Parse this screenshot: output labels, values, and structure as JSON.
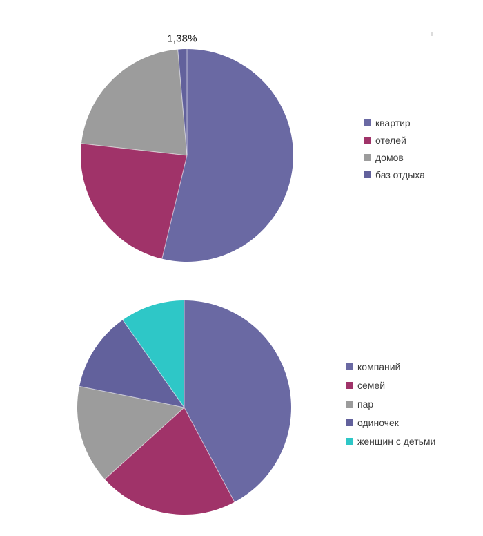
{
  "colors": {
    "background": "#ffffff",
    "label_text": "#1a1a1a",
    "legend_text": "#3d3d3d",
    "slice_separator": "rgba(255,255,255,0.55)"
  },
  "chart_data": [
    {
      "type": "pie",
      "name": "accommodation-share-pie",
      "title": "",
      "legend_position": "right",
      "start_angle_deg": 0,
      "direction": "clockwise",
      "slices": [
        {
          "label": "квартир",
          "value": 53.78,
          "display": "53,78%",
          "color": "#6A69A3"
        },
        {
          "label": "отелей",
          "value": 23.0,
          "display": "23,00%",
          "color": "#A03369"
        },
        {
          "label": "домов",
          "value": 21.84,
          "display": "21,84%",
          "color": "#9C9C9C"
        },
        {
          "label": "баз отдыха",
          "value": 1.38,
          "display": "1,38%",
          "color": "#62619C"
        }
      ]
    },
    {
      "type": "pie",
      "name": "guest-type-share-pie",
      "title": "",
      "legend_position": "right",
      "start_angle_deg": 0,
      "direction": "clockwise",
      "slices": [
        {
          "label": "компаний",
          "value": 42.21,
          "display": "42,21%",
          "color": "#6A69A3"
        },
        {
          "label": "семей",
          "value": 21.11,
          "display": "21,11%",
          "color": "#A03369"
        },
        {
          "label": "пар",
          "value": 14.85,
          "display": "14,85%",
          "color": "#9C9C9C"
        },
        {
          "label": "одиночек",
          "value": 12.08,
          "display": "12,08%",
          "color": "#62619C"
        },
        {
          "label": "женщин с детьми",
          "value": 9.76,
          "display": "9,76%",
          "color": "#2EC7C7"
        }
      ]
    }
  ]
}
